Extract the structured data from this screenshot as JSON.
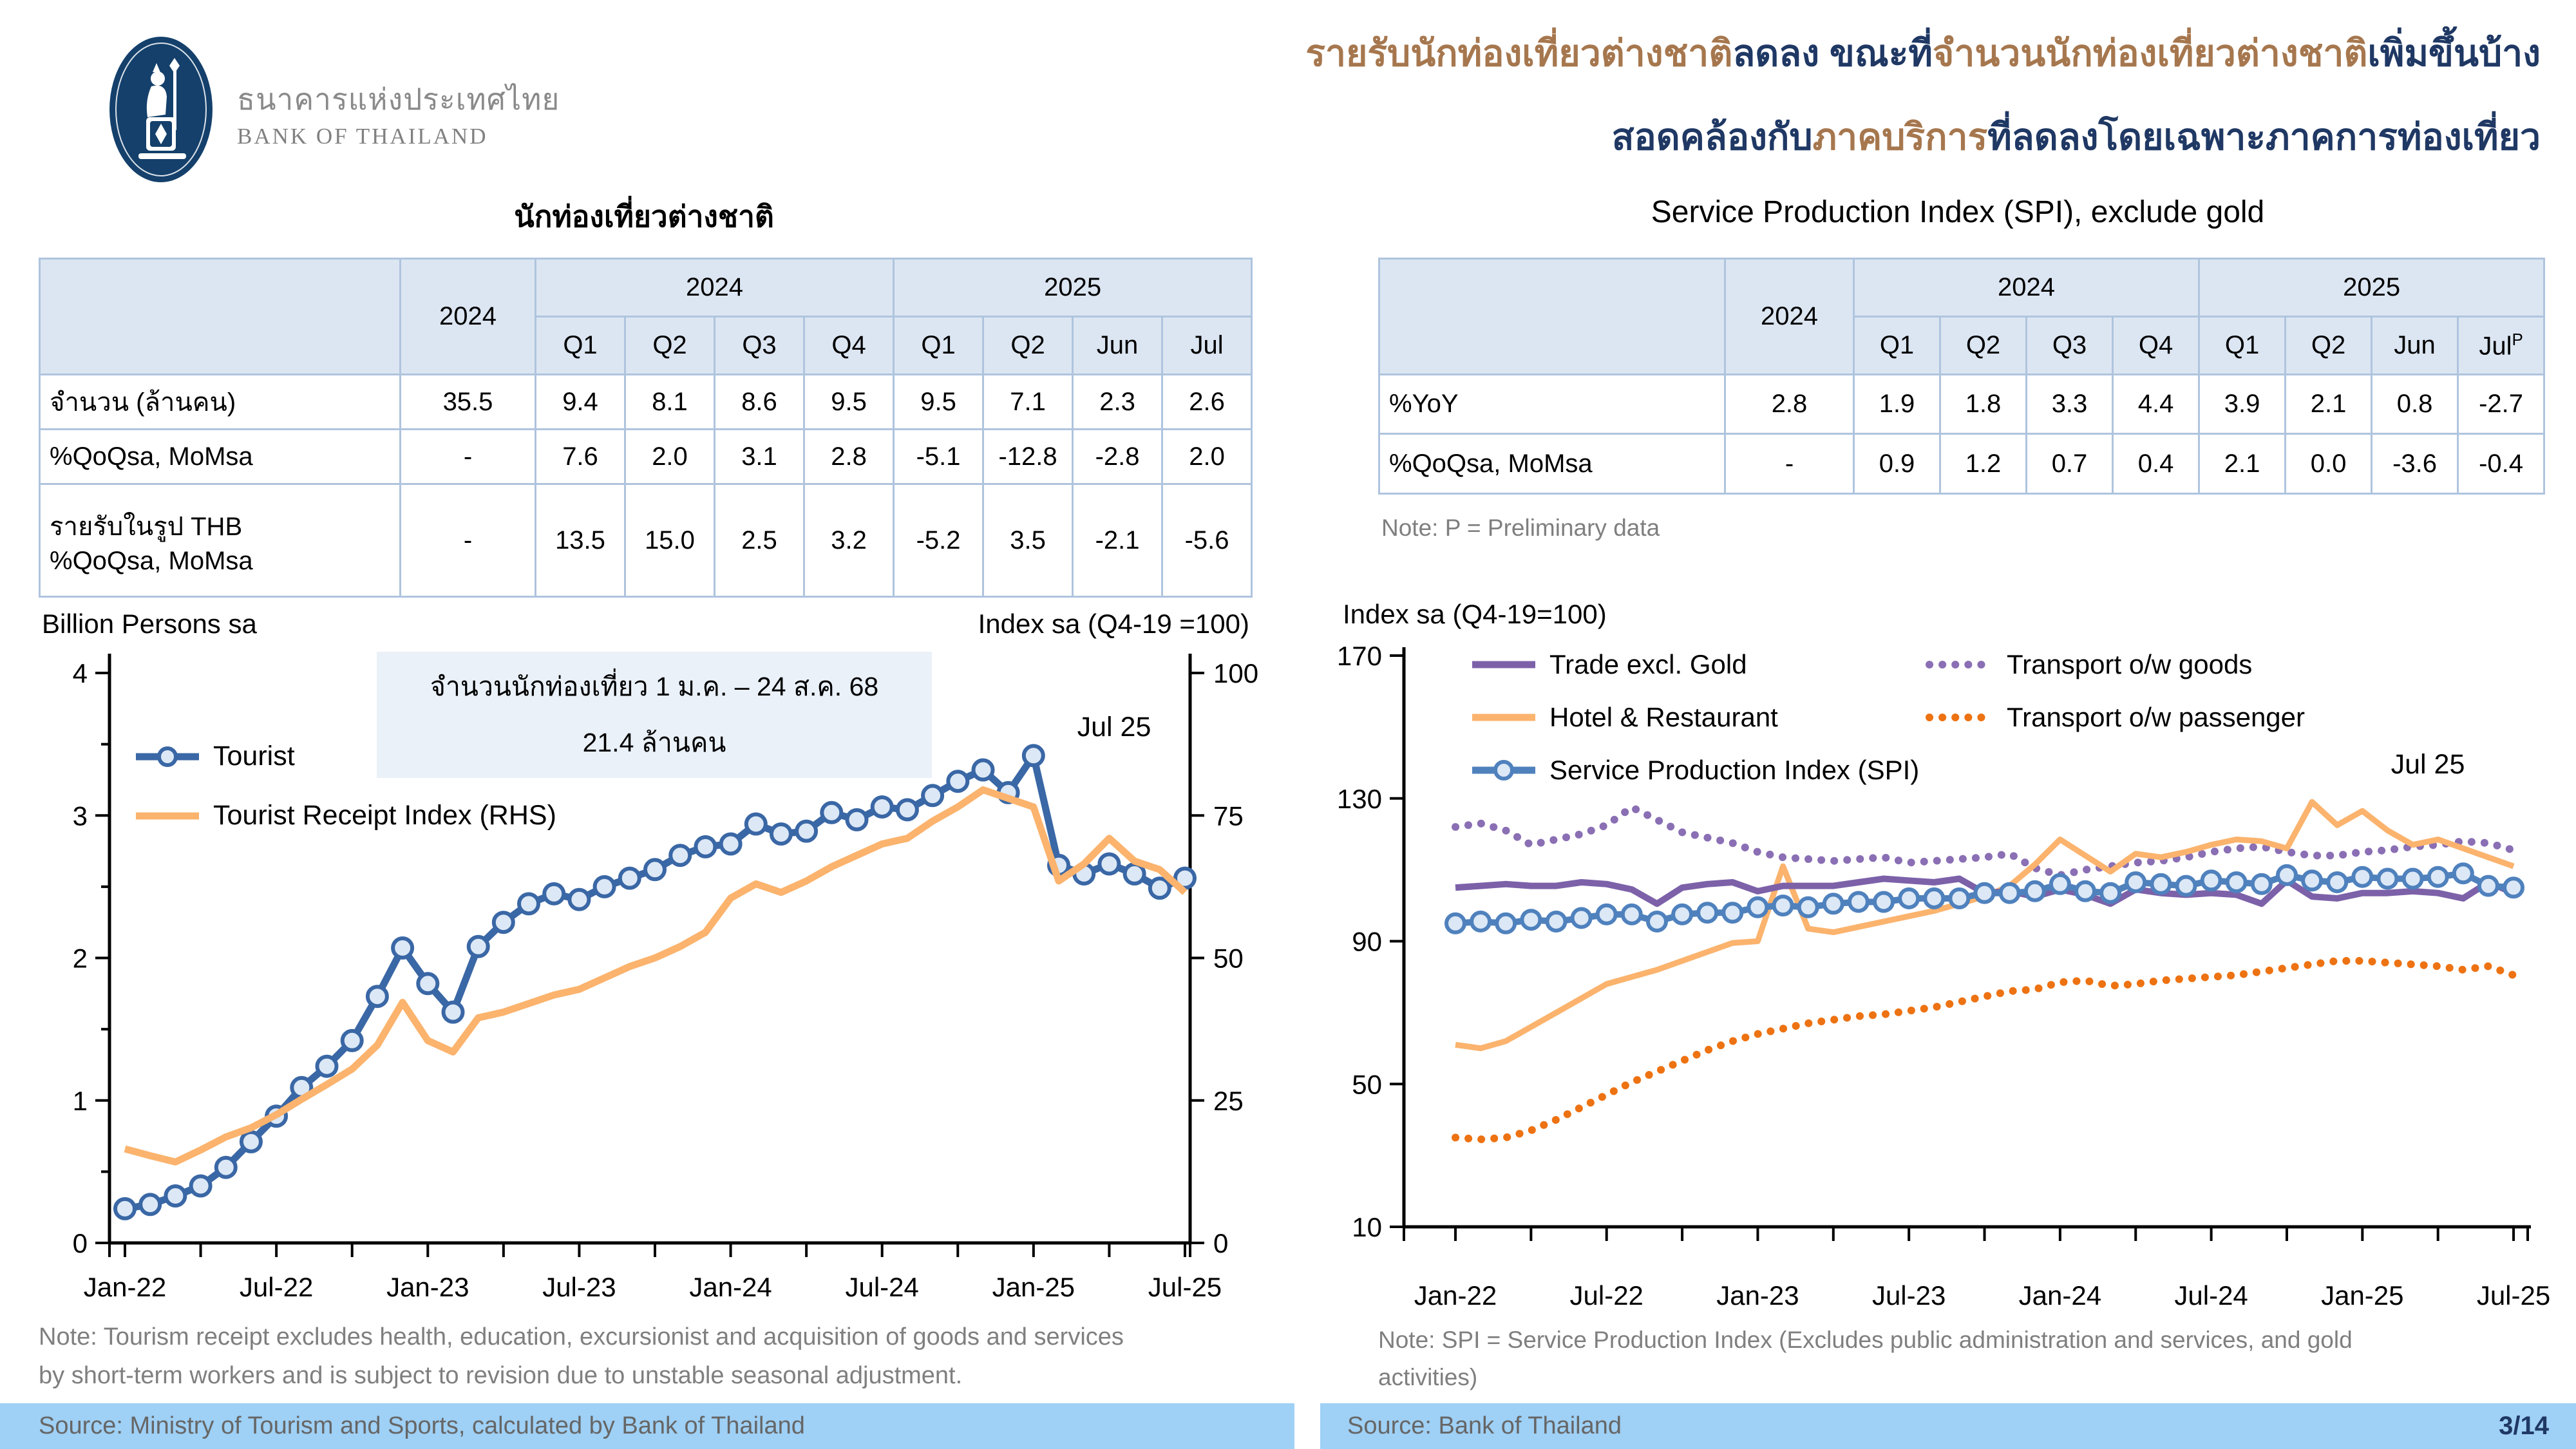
{
  "colors": {
    "navy": "#1F3864",
    "brown": "#A6774E",
    "table_border": "#AFC4DE",
    "table_header_bg": "#DCE6F2",
    "band_blue": "#9FD0F5",
    "note_gray": "#7F7F7F",
    "annotation_bg": "#EAF1F9",
    "marker_fill": "#DCE8F6"
  },
  "header": {
    "logo": {
      "thai": "ธนาคารแห่งประเทศไทย",
      "en": "BANK OF THAILAND"
    },
    "title": {
      "l1s1": "รายรับนักท่องเที่ยวต่างชาติ",
      "l1s2": "ลดลง ขณะที่",
      "l1s3": "จำนวนนักท่องเที่ยวต่างชาติ",
      "l1s4": "เพิ่มขึ้นบ้าง",
      "l2s1": "สอดคล้องกับ",
      "l2s2": "ภาคบริการ",
      "l2s3": "ที่ลดลงโดยเฉพาะภาคการท่องเที่ยว"
    }
  },
  "left_panel": {
    "section_title": "นักท่องเที่ยวต่างชาติ",
    "table": {
      "col_year": "2024",
      "group_2024": "2024",
      "group_2025": "2025",
      "quarters": [
        "Q1",
        "Q2",
        "Q3",
        "Q4",
        "Q1",
        "Q2",
        "Jun",
        "Jul"
      ],
      "rows": [
        {
          "label": "จำนวน (ล้านคน)",
          "values": [
            "35.5",
            "9.4",
            "8.1",
            "8.6",
            "9.5",
            "9.5",
            "7.1",
            "2.3",
            "2.6"
          ]
        },
        {
          "label": "%QoQsa, MoMsa",
          "values": [
            "-",
            "7.6",
            "2.0",
            "3.1",
            "2.8",
            "-5.1",
            "-12.8",
            "-2.8",
            "2.0"
          ]
        },
        {
          "label": "รายรับในรูป THB\n%QoQsa, MoMsa",
          "values": [
            "-",
            "13.5",
            "15.0",
            "2.5",
            "3.2",
            "-5.2",
            "3.5",
            "-2.1",
            "-5.6"
          ]
        }
      ]
    },
    "axis_caption_left": "Billion Persons sa",
    "axis_caption_right": "Index sa (Q4-19 =100)",
    "annotation_line1": "จำนวนนักท่องเที่ยว 1 ม.ค. – 24 ส.ค. 68",
    "annotation_line2": "21.4 ล้านคน",
    "jul_label": "Jul 25",
    "note": "Note: Tourism receipt excludes health, education, excursionist and acquisition of goods and services\nby short-term workers and is subject to revision due to unstable seasonal adjustment.",
    "source": "Source: Ministry of Tourism and Sports, calculated by Bank of Thailand"
  },
  "right_panel": {
    "section_title": "Service Production Index (SPI), exclude gold",
    "table": {
      "col_year": "2024",
      "group_2024": "2024",
      "group_2025": "2025",
      "quarters": [
        "Q1",
        "Q2",
        "Q3",
        "Q4",
        "Q1",
        "Q2",
        "Jun",
        "Jul"
      ],
      "jul_sup": "P",
      "rows": [
        {
          "label": "%YoY",
          "values": [
            "2.8",
            "1.9",
            "1.8",
            "3.3",
            "4.4",
            "3.9",
            "2.1",
            "0.8",
            "-2.7"
          ]
        },
        {
          "label": "%QoQsa, MoMsa",
          "values": [
            "-",
            "0.9",
            "1.2",
            "0.7",
            "0.4",
            "2.1",
            "0.0",
            "-3.6",
            "-0.4"
          ]
        }
      ]
    },
    "note_p": "Note: P = Preliminary data",
    "axis_caption_left": "Index sa (Q4-19=100)",
    "jul_label": "Jul 25",
    "note": "Note: SPI = Service Production Index (Excludes public administration and services, and gold\nactivities)",
    "source": "Source: Bank of Thailand"
  },
  "page": {
    "number": "3/14"
  },
  "chart_data": {
    "months": [
      "Jan-22",
      "Feb-22",
      "Mar-22",
      "Apr-22",
      "May-22",
      "Jun-22",
      "Jul-22",
      "Aug-22",
      "Sep-22",
      "Oct-22",
      "Nov-22",
      "Dec-22",
      "Jan-23",
      "Feb-23",
      "Mar-23",
      "Apr-23",
      "May-23",
      "Jun-23",
      "Jul-23",
      "Aug-23",
      "Sep-23",
      "Oct-23",
      "Nov-23",
      "Dec-23",
      "Jan-24",
      "Feb-24",
      "Mar-24",
      "Apr-24",
      "May-24",
      "Jun-24",
      "Jul-24",
      "Aug-24",
      "Sep-24",
      "Oct-24",
      "Nov-24",
      "Dec-24",
      "Jan-25",
      "Feb-25",
      "Mar-25",
      "Apr-25",
      "May-25",
      "Jun-25",
      "Jul-25"
    ],
    "charts": [
      {
        "type": "line",
        "title": "นักท่องเที่ยวต่างชาติ",
        "x_ticks": [
          "Jan-22",
          "Jul-22",
          "Jan-23",
          "Jul-23",
          "Jan-24",
          "Jul-24",
          "Jan-25",
          "Jul-25"
        ],
        "left_axis": {
          "min": 0,
          "max": 4,
          "ticks": [
            0,
            1,
            2,
            3,
            4
          ]
        },
        "right_axis": {
          "min": 0,
          "max": 100,
          "ticks": [
            0,
            25,
            50,
            75,
            100
          ]
        },
        "series": [
          {
            "name": "Tourist",
            "axis": "L",
            "color": "#3A67A5",
            "width": 11,
            "marker": true,
            "r": 15,
            "values": [
              0.24,
              0.27,
              0.33,
              0.4,
              0.53,
              0.71,
              0.89,
              1.09,
              1.24,
              1.42,
              1.73,
              2.07,
              1.82,
              1.62,
              2.08,
              2.25,
              2.38,
              2.45,
              2.41,
              2.5,
              2.56,
              2.62,
              2.72,
              2.78,
              2.8,
              2.94,
              2.87,
              2.89,
              3.02,
              2.97,
              3.06,
              3.04,
              3.14,
              3.24,
              3.32,
              3.16,
              3.42,
              2.65,
              2.59,
              2.66,
              2.59,
              2.49,
              2.56
            ]
          },
          {
            "name": "Tourist Receipt Index (RHS)",
            "axis": "R",
            "color": "#FBB36D",
            "width": 11,
            "values": [
              16.5,
              15.3,
              14.2,
              16.3,
              18.6,
              20.2,
              22.5,
              25.2,
              27.8,
              30.5,
              34.7,
              42.2,
              35.5,
              33.5,
              39.5,
              40.5,
              42.0,
              43.5,
              44.5,
              46.5,
              48.5,
              50.0,
              52.0,
              54.5,
              60.5,
              63.0,
              61.5,
              63.5,
              66.0,
              68.0,
              70.0,
              71.0,
              74.0,
              76.5,
              79.5,
              78.0,
              76.5,
              63.5,
              66.5,
              71.0,
              67.0,
              65.5,
              61.5
            ]
          }
        ]
      },
      {
        "type": "line",
        "title": "Service Production Index (SPI), exclude gold",
        "x_ticks": [
          "Jan-22",
          "Jul-22",
          "Jan-23",
          "Jul-23",
          "Jan-24",
          "Jul-24",
          "Jan-25",
          "Jul-25"
        ],
        "left_axis": {
          "min": 10,
          "max": 170,
          "ticks": [
            10,
            50,
            90,
            130,
            170
          ]
        },
        "series": [
          {
            "name": "Transport o/w goods",
            "axis": "L",
            "color": "#8A6FB4",
            "width": 12,
            "dot": true,
            "values": [
              122,
              123,
              121,
              117,
              118.5,
              120,
              122.5,
              127.5,
              124,
              120.5,
              119,
              117.5,
              115,
              113.5,
              113,
              112.5,
              113,
              113.5,
              112,
              112.5,
              113,
              113.5,
              114.5,
              110.5,
              108.5,
              110,
              111,
              112,
              112.5,
              113.5,
              115,
              116,
              116.5,
              115,
              114,
              114,
              115,
              115.5,
              116.5,
              117,
              118,
              117.5,
              115.5
            ]
          },
          {
            "name": "Hotel & Restaurant",
            "axis": "L",
            "color": "#FBB36D",
            "width": 9,
            "values": [
              61,
              60,
              62,
              66,
              70,
              74,
              78,
              80,
              82,
              84.5,
              87,
              89.5,
              90,
              111,
              93.5,
              92.5,
              94,
              95.5,
              97,
              98.5,
              100.5,
              102.5,
              105.5,
              111.5,
              118.5,
              114,
              109.5,
              114.5,
              113.5,
              115,
              117,
              118.5,
              118,
              116,
              129,
              122.5,
              126.5,
              121,
              117,
              118.5,
              116,
              113.5,
              111
            ]
          },
          {
            "name": "Transport o/w passenger",
            "axis": "L",
            "color": "#ED7212",
            "width": 12,
            "dot": true,
            "values": [
              35,
              34.5,
              35,
              37,
              40,
              43.5,
              47,
              50.5,
              53.5,
              56.5,
              59.5,
              62,
              64,
              65.5,
              67,
              68,
              69,
              69.5,
              70.5,
              71.5,
              73,
              74.5,
              76,
              76.5,
              78.5,
              79,
              77.5,
              78,
              79,
              79.5,
              80,
              80.5,
              81.5,
              82.5,
              83.5,
              84.5,
              84.5,
              84,
              83.5,
              83,
              82,
              83,
              80.5
            ]
          },
          {
            "name": "Trade excl. Gold",
            "axis": "L",
            "color": "#7C61A9",
            "width": 10,
            "values": [
              105,
              105.5,
              106,
              105.5,
              105.5,
              106.5,
              106,
              104.5,
              100.5,
              105,
              106,
              106.5,
              104,
              105.5,
              105.5,
              105.5,
              106.5,
              107.5,
              107,
              106.5,
              107.5,
              103.5,
              104,
              102.5,
              104.5,
              103,
              100.5,
              104.5,
              103.5,
              103,
              103.5,
              103,
              100.5,
              107,
              102.5,
              102,
              103.5,
              103.5,
              104,
              103.5,
              102,
              106.5,
              103.5
            ]
          },
          {
            "name": "Service Production Index (SPI)",
            "axis": "L",
            "color": "#4F81BD",
            "width": 10,
            "marker": true,
            "r": 14,
            "values": [
              95,
              95.5,
              95,
              96,
              95.5,
              96.5,
              97.5,
              97.5,
              95.5,
              97.5,
              98,
              98,
              99.5,
              100,
              99.5,
              100.5,
              101,
              101,
              102,
              102,
              102,
              103.5,
              103.5,
              104,
              106,
              104,
              103.5,
              106.5,
              106,
              105.5,
              107,
              106.5,
              106,
              108.5,
              107,
              106.5,
              108,
              107.5,
              107.5,
              108,
              109,
              105.5,
              105
            ]
          }
        ]
      }
    ]
  }
}
